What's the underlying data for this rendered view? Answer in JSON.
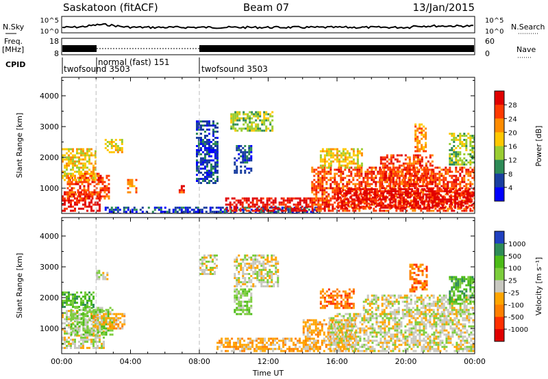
{
  "header": {
    "station": "Saskatoon (fitACF)",
    "beam": "Beam 07",
    "date": "13/Jan/2015"
  },
  "strip": {
    "nsky_label": "N.Sky",
    "nsky_ticks": [
      "10^5",
      "10^0"
    ],
    "nsearch_label": "N.Search",
    "freq_label_1": "Freq.",
    "freq_label_2": "[MHz]",
    "freq_ticks": [
      "18",
      "8"
    ],
    "nave_ticks": [
      "60",
      "0"
    ],
    "nave_label": "Nave",
    "cpid_label": "CPID",
    "cpid_segments": [
      {
        "label": "twofsound 3503",
        "start_h": 0,
        "end_h": 2
      },
      {
        "label": "normal (fast) 151",
        "start_h": 2,
        "end_h": 8
      },
      {
        "label": "twofsound 3503",
        "start_h": 8,
        "end_h": 24
      }
    ]
  },
  "chart_data": [
    {
      "type": "heatmap",
      "name": "power",
      "ylabel": "Slant Range [km]",
      "xlabel": "Time UT",
      "xlim": [
        0,
        24
      ],
      "ylim": [
        180,
        4600
      ],
      "yticks": [
        1000,
        2000,
        3000,
        4000
      ],
      "xtick_labels": [
        "00:00",
        "04:00",
        "08:00",
        "12:00",
        "16:00",
        "20:00",
        "00:00"
      ],
      "colorbar": {
        "label": "Power [dB]",
        "ticks": [
          "28",
          "24",
          "20",
          "16",
          "12",
          "8",
          "4"
        ],
        "colors": [
          "#e00000",
          "#ff3a00",
          "#ff8c00",
          "#ffc800",
          "#9acd32",
          "#2e8b57",
          "#1a3fa0",
          "#0000ff"
        ]
      },
      "echo_regions": [
        {
          "t0": 0.0,
          "t1": 2.2,
          "r0": 300,
          "r1": 900,
          "level": 0
        },
        {
          "t0": 0.3,
          "t1": 2.8,
          "r0": 700,
          "r1": 1500,
          "level": 1
        },
        {
          "t0": 0.0,
          "t1": 2.0,
          "r0": 1300,
          "r1": 2300,
          "level": 3
        },
        {
          "t0": 2.5,
          "t1": 3.5,
          "r0": 2200,
          "r1": 2600,
          "level": 3
        },
        {
          "t0": 3.8,
          "t1": 4.3,
          "r0": 900,
          "r1": 1300,
          "level": 2
        },
        {
          "t0": 6.8,
          "t1": 7.1,
          "r0": 900,
          "r1": 1100,
          "level": 1
        },
        {
          "t0": 2.5,
          "t1": 15.0,
          "r0": 200,
          "r1": 400,
          "level": 6
        },
        {
          "t0": 9.5,
          "t1": 15.5,
          "r0": 300,
          "r1": 700,
          "level": 0
        },
        {
          "t0": 7.8,
          "t1": 9.0,
          "r0": 1200,
          "r1": 3200,
          "level": 6
        },
        {
          "t0": 9.8,
          "t1": 12.2,
          "r0": 2900,
          "r1": 3500,
          "level": 4
        },
        {
          "t0": 10.0,
          "t1": 11.0,
          "r0": 1500,
          "r1": 2400,
          "level": 6
        },
        {
          "t0": 14.5,
          "t1": 24.0,
          "r0": 300,
          "r1": 1700,
          "level": 1
        },
        {
          "t0": 15.0,
          "t1": 17.5,
          "r0": 1700,
          "r1": 2300,
          "level": 3
        },
        {
          "t0": 18.5,
          "t1": 21.5,
          "r0": 1100,
          "r1": 2100,
          "level": 1
        },
        {
          "t0": 20.5,
          "t1": 21.2,
          "r0": 2200,
          "r1": 3100,
          "level": 2
        },
        {
          "t0": 22.5,
          "t1": 24.0,
          "r0": 1800,
          "r1": 2800,
          "level": 4
        },
        {
          "t0": 16.0,
          "t1": 24.0,
          "r0": 400,
          "r1": 1000,
          "level": 0
        }
      ]
    },
    {
      "type": "heatmap",
      "name": "velocity",
      "ylabel": "Slant Range [km]",
      "xlabel": "Time UT",
      "xlim": [
        0,
        24
      ],
      "ylim": [
        180,
        4600
      ],
      "yticks": [
        1000,
        2000,
        3000,
        4000
      ],
      "xtick_labels": [
        "00:00",
        "04:00",
        "08:00",
        "12:00",
        "16:00",
        "20:00",
        "00:00"
      ],
      "colorbar": {
        "label": "Velocity [m s⁻¹]",
        "ticks": [
          "1000",
          "500",
          "100",
          "25",
          "-25",
          "-100",
          "-500",
          "-1000"
        ],
        "colors": [
          "#2040c0",
          "#2e8b57",
          "#4cbb17",
          "#7ccd3c",
          "#c8c8c0",
          "#ffa500",
          "#ff7f00",
          "#ff3000",
          "#e00000"
        ]
      },
      "echo_regions": [
        {
          "t0": 0.0,
          "t1": 2.5,
          "r0": 400,
          "r1": 1600,
          "level": 4
        },
        {
          "t0": 0.5,
          "t1": 3.0,
          "r0": 800,
          "r1": 1700,
          "level": 3
        },
        {
          "t0": 1.8,
          "t1": 3.6,
          "r0": 1000,
          "r1": 1500,
          "level": 5
        },
        {
          "t0": 0.0,
          "t1": 1.8,
          "r0": 1700,
          "r1": 2200,
          "level": 2
        },
        {
          "t0": 2.0,
          "t1": 2.6,
          "r0": 2600,
          "r1": 2900,
          "level": 4
        },
        {
          "t0": 9.0,
          "t1": 14.8,
          "r0": 300,
          "r1": 700,
          "level": 5
        },
        {
          "t0": 8.0,
          "t1": 9.0,
          "r0": 2800,
          "r1": 3400,
          "level": 4
        },
        {
          "t0": 10.0,
          "t1": 12.6,
          "r0": 2400,
          "r1": 3400,
          "level": 4
        },
        {
          "t0": 10.0,
          "t1": 11.0,
          "r0": 1500,
          "r1": 2300,
          "level": 3
        },
        {
          "t0": 14.0,
          "t1": 17.0,
          "r0": 300,
          "r1": 1300,
          "level": 5
        },
        {
          "t0": 15.5,
          "t1": 24.0,
          "r0": 300,
          "r1": 1500,
          "level": 4
        },
        {
          "t0": 15.0,
          "t1": 17.0,
          "r0": 1700,
          "r1": 2300,
          "level": 6
        },
        {
          "t0": 17.5,
          "t1": 24.0,
          "r0": 1500,
          "r1": 2100,
          "level": 4
        },
        {
          "t0": 20.2,
          "t1": 21.2,
          "r0": 2200,
          "r1": 3100,
          "level": 6
        },
        {
          "t0": 22.5,
          "t1": 24.0,
          "r0": 1800,
          "r1": 2700,
          "level": 2
        }
      ]
    }
  ]
}
